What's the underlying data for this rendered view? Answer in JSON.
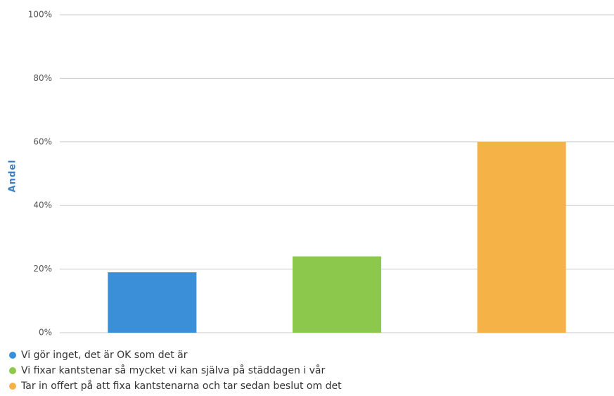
{
  "chart_data": {
    "type": "bar",
    "y_label": "Andel",
    "series": [
      {
        "name": "Vi gör inget, det är OK som det är",
        "color": "#3a8fd8",
        "values": [
          19
        ]
      },
      {
        "name": "Vi fixar kantstenar så mycket vi kan själva på städdagen i vår",
        "color": "#8cc84b",
        "values": [
          24
        ]
      },
      {
        "name": "Tar in offert på att fixa kantstenarna och tar sedan beslut om det",
        "color": "#f5b247",
        "values": [
          60
        ]
      }
    ],
    "ylim": [
      0,
      100
    ],
    "yticks": [
      {
        "value": 0,
        "label": "0%"
      },
      {
        "value": 20,
        "label": "20%"
      },
      {
        "value": 40,
        "label": "40%"
      },
      {
        "value": 60,
        "label": "60%"
      },
      {
        "value": 80,
        "label": "80%"
      },
      {
        "value": 100,
        "label": "100%"
      }
    ],
    "grid": true,
    "legend": "bottom"
  }
}
